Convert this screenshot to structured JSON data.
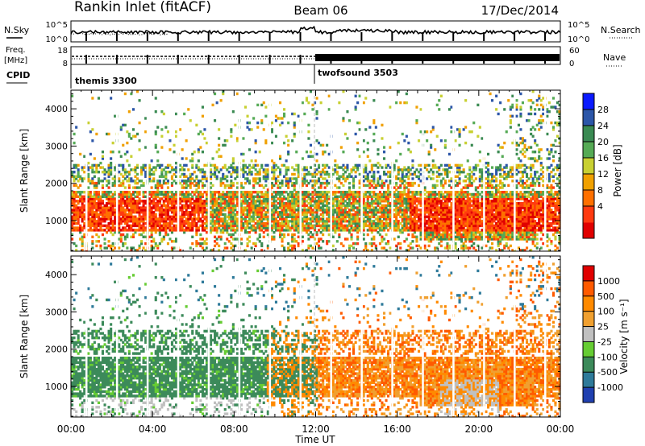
{
  "header": {
    "station": "Rankin Inlet (fitACF)",
    "beam": "Beam 06",
    "date": "17/Dec/2014"
  },
  "top_panels": {
    "nsky_label": "N.Sky",
    "nsky_ticks": [
      "10^5",
      "10^0"
    ],
    "nsearch_label": "N.Search",
    "nsearch_ticks": [
      "10^5",
      "10^0"
    ],
    "freq_label": "Freq.",
    "freq_unit": "[MHz]",
    "freq_ticks": [
      "18",
      "8"
    ],
    "nave_label": "Nave",
    "nave_ticks": [
      "60",
      "0"
    ],
    "cpid_label": "CPID",
    "cpid_segments": [
      {
        "name": "themis 3300",
        "start_hour": 0,
        "end_hour": 12.0
      },
      {
        "name": "twofsound 3503",
        "start_hour": 12.0,
        "end_hour": 24
      }
    ]
  },
  "chart_data": [
    {
      "type": "heatmap",
      "name": "power-panel",
      "ylabel": "Slant Range [km]",
      "xlabel": "Time UT",
      "xlim_hours": [
        0,
        24
      ],
      "ylim_km": [
        180,
        4500
      ],
      "y_ticks": [
        1000,
        2000,
        3000,
        4000
      ],
      "x_tick_labels": [
        "00:00",
        "04:00",
        "08:00",
        "12:00",
        "16:00",
        "20:00",
        "00:00"
      ],
      "colorbar_label": "Power [dB]",
      "colorbar_ticks": [
        "28",
        "24",
        "20",
        "16",
        "12",
        "8",
        "4"
      ],
      "colors": [
        "#0a1aff",
        "#2c56a8",
        "#3a8a52",
        "#55aa55",
        "#c8d032",
        "#f0a000",
        "#ff7000",
        "#ff3a10",
        "#e00000"
      ]
    },
    {
      "type": "heatmap",
      "name": "velocity-panel",
      "ylabel": "Slant Range [km]",
      "xlabel": "Time UT",
      "xlim_hours": [
        0,
        24
      ],
      "ylim_km": [
        180,
        4500
      ],
      "y_ticks": [
        1000,
        2000,
        3000,
        4000
      ],
      "x_tick_labels": [
        "00:00",
        "04:00",
        "08:00",
        "12:00",
        "16:00",
        "20:00",
        "00:00"
      ],
      "colorbar_label": "Velocity [m s⁻¹]",
      "colorbar_ticks": [
        "1000",
        "500",
        "100",
        "25",
        "-25",
        "-100",
        "-500",
        "-1000"
      ],
      "colors": [
        "#2040b0",
        "#2e7a9a",
        "#3c8a5a",
        "#66cc33",
        "#c0c0c0",
        "#f0a030",
        "#ff8a00",
        "#ff5a00",
        "#e00000"
      ]
    }
  ]
}
